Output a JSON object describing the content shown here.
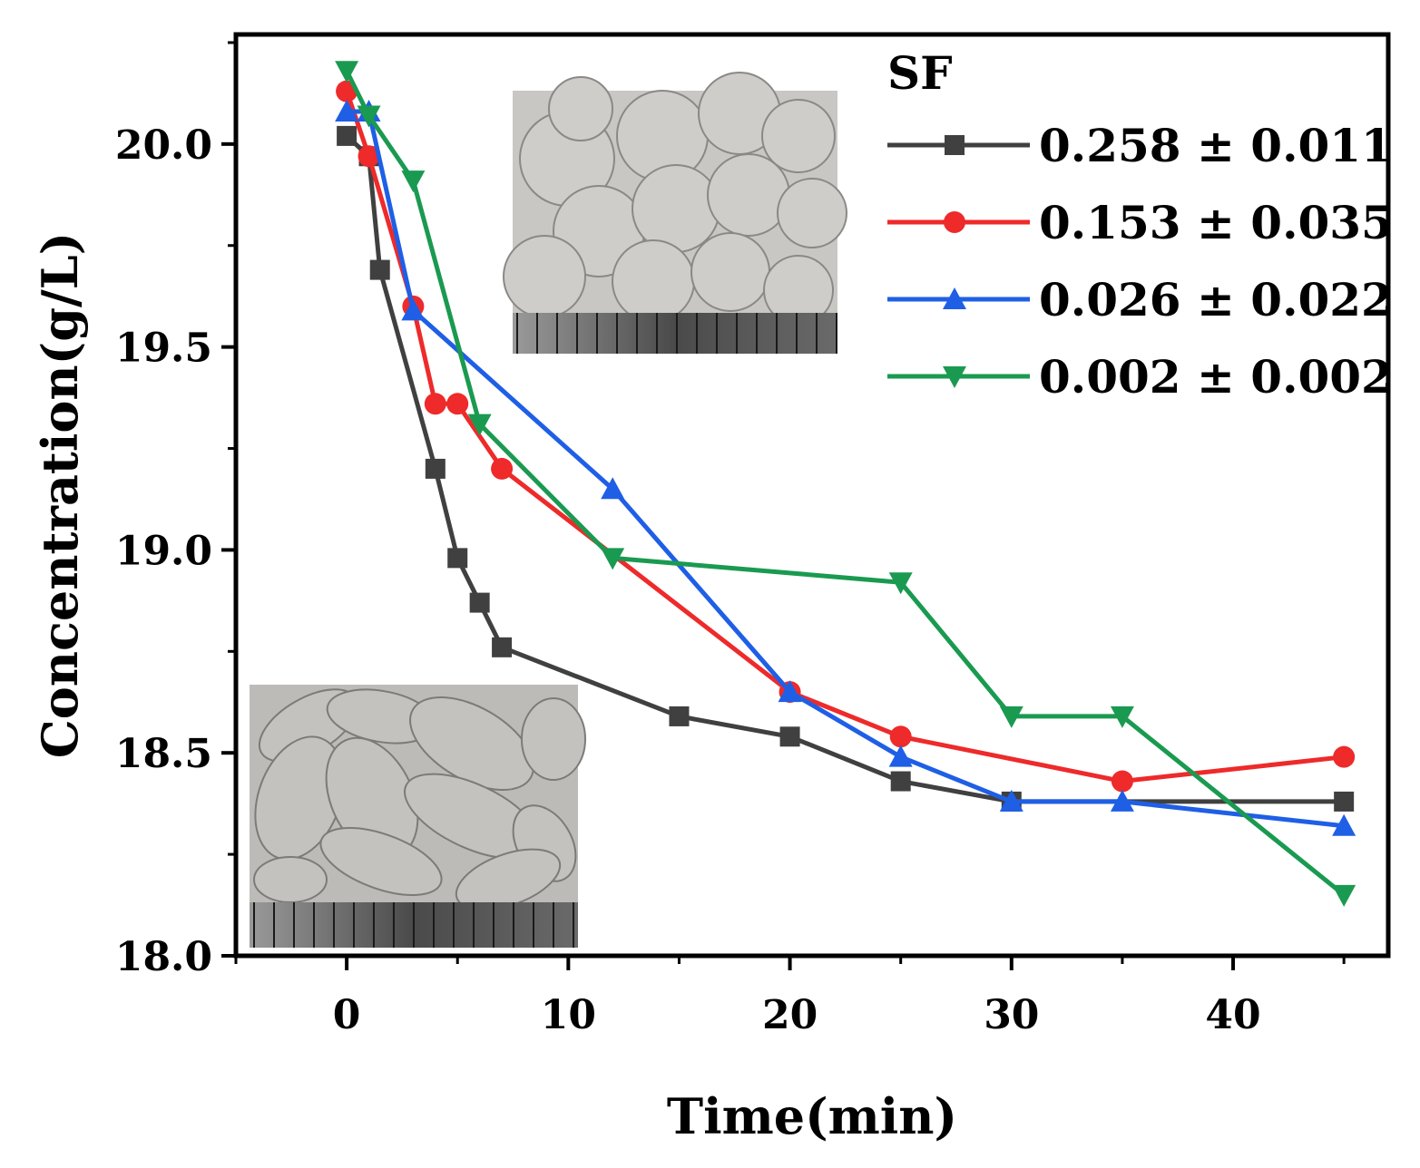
{
  "chart_data": {
    "type": "line",
    "xlabel": "Time(min)",
    "ylabel": "Concentration(g/L)",
    "xlim": [
      -5,
      47
    ],
    "ylim": [
      18.0,
      20.27
    ],
    "xticks": [
      0,
      10,
      20,
      30,
      40
    ],
    "yticks": [
      18.0,
      18.5,
      19.0,
      19.5,
      20.0
    ],
    "xtick_labels": [
      "0",
      "10",
      "20",
      "30",
      "40"
    ],
    "ytick_labels": [
      "18.0",
      "18.5",
      "19.0",
      "19.5",
      "20.0"
    ],
    "legend": {
      "title": "SF",
      "position": "top-right"
    },
    "series": [
      {
        "name": "0.258 ± 0.011",
        "color": "#404040",
        "marker": "square",
        "x": [
          0,
          1,
          1.5,
          4,
          5,
          6,
          7,
          15,
          20,
          25,
          30,
          45
        ],
        "y": [
          20.02,
          19.97,
          19.69,
          19.2,
          18.98,
          18.87,
          18.76,
          18.59,
          18.54,
          18.43,
          18.38,
          18.38
        ]
      },
      {
        "name": "0.153 ± 0.035",
        "color": "#ee2a2a",
        "marker": "circle",
        "x": [
          0,
          1,
          3,
          4,
          5,
          7,
          20,
          25,
          35,
          45
        ],
        "y": [
          20.13,
          19.97,
          19.6,
          19.36,
          19.36,
          19.2,
          18.65,
          18.54,
          18.43,
          18.49
        ]
      },
      {
        "name": "0.026 ± 0.022",
        "color": "#1f5fe6",
        "marker": "triangle-up",
        "x": [
          0,
          1,
          3,
          12,
          20,
          25,
          30,
          35,
          45
        ],
        "y": [
          20.08,
          20.08,
          19.59,
          19.15,
          18.65,
          18.49,
          18.38,
          18.38,
          18.32
        ]
      },
      {
        "name": "0.002 ± 0.002",
        "color": "#1a9a50",
        "marker": "triangle-down",
        "x": [
          0,
          1,
          3,
          6,
          12,
          25,
          30,
          35,
          45
        ],
        "y": [
          20.18,
          20.07,
          19.91,
          19.31,
          18.98,
          18.92,
          18.59,
          18.59,
          18.15
        ]
      }
    ]
  },
  "insets": [
    {
      "name": "top-inset-photo",
      "description_icon": "circular-droplets-photo-icon"
    },
    {
      "name": "bottom-inset-photo",
      "description_icon": "elongated-droplets-photo-icon"
    }
  ]
}
